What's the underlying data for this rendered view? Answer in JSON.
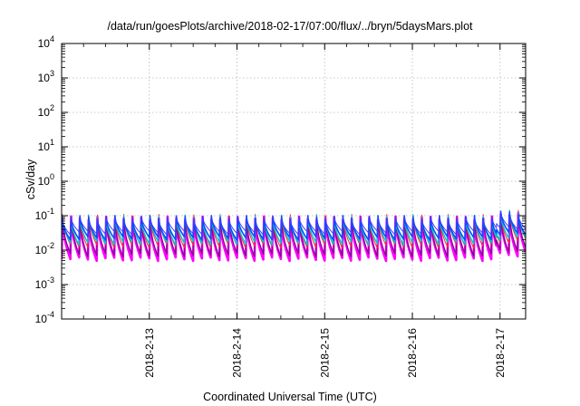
{
  "chart_data": {
    "type": "line",
    "title": "/data/run/goesPlots/archive/2018-02-17/07:00/flux/../bryn/5daysMars.plot",
    "xlabel": "Coordinated Universal Time (UTC)",
    "ylabel": "cSv/day",
    "yscale": "log",
    "ylim": [
      0.0001,
      10000
    ],
    "ytick_labels": [
      {
        "base": "10",
        "exp": "-4",
        "value": 0.0001
      },
      {
        "base": "10",
        "exp": "-3",
        "value": 0.001
      },
      {
        "base": "10",
        "exp": "-2",
        "value": 0.01
      },
      {
        "base": "10",
        "exp": "-1",
        "value": 0.1
      },
      {
        "base": "10",
        "exp": "0",
        "value": 1
      },
      {
        "base": "10",
        "exp": "1",
        "value": 10
      },
      {
        "base": "10",
        "exp": "2",
        "value": 100
      },
      {
        "base": "10",
        "exp": "3",
        "value": 1000
      },
      {
        "base": "10",
        "exp": "4",
        "value": 10000
      }
    ],
    "xlim": [
      "2018-02-12 00:00",
      "2018-02-17 07:00"
    ],
    "xtick_labels": [
      "2018-2-13",
      "2018-2-14",
      "2018-2-15",
      "2018-2-16",
      "2018-2-17"
    ],
    "grid": true,
    "legend": "none",
    "pattern": {
      "period_hours": 2.4,
      "drop_hours": 0.2,
      "start": "2018-02-12 00:00"
    },
    "series": [
      {
        "color": "#ff00ff",
        "width": 2.6,
        "peak": 0.085,
        "trough": 0.0055
      },
      {
        "color": "#7a0a8a",
        "width": 1.2,
        "peak": 0.082,
        "trough": 0.0072
      },
      {
        "color": "#ff2a2a",
        "width": 1.0,
        "peak": 0.098,
        "trough": 0.013
      },
      {
        "color": "#00c8c8",
        "width": 1.4,
        "peak": 0.092,
        "trough": 0.016
      },
      {
        "color": "#0050ff",
        "width": 1.6,
        "peak": 0.09,
        "trough": 0.022
      },
      {
        "color": "#3a3aff",
        "width": 1.0,
        "peak": 0.088,
        "trough": 0.032
      }
    ],
    "enhancement": {
      "start": "2018-02-16 23:00",
      "factor": 1.35
    }
  }
}
